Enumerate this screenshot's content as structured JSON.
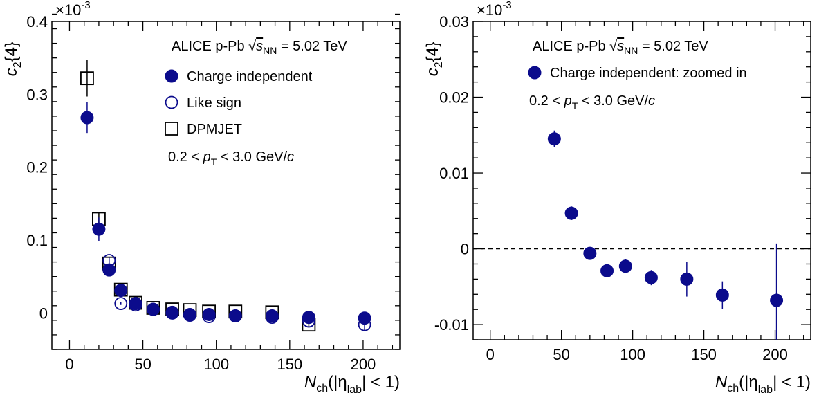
{
  "chart_data": [
    {
      "type": "scatter",
      "panel": "left",
      "xlim": [
        -12,
        225
      ],
      "ylim": [
        -0.05,
        0.4
      ],
      "yscale_label": "×10",
      "yscale_exp": "-3",
      "xlabel": {
        "main": "N",
        "sub": "ch",
        "rest": "(|η",
        "sub2": "lab",
        "tail": "| < 1)"
      },
      "ylabel": {
        "main": "c",
        "sub": "2",
        "rest": "{4}"
      },
      "x_ticks": [
        {
          "value": 0,
          "label": "0"
        },
        {
          "value": 50,
          "label": "50"
        },
        {
          "value": 100,
          "label": "100"
        },
        {
          "value": 150,
          "label": "150"
        },
        {
          "value": 200,
          "label": "200"
        }
      ],
      "y_ticks": [
        {
          "value": 0,
          "label": "0"
        },
        {
          "value": 0.1,
          "label": "0.1"
        },
        {
          "value": 0.2,
          "label": "0.2"
        },
        {
          "value": 0.3,
          "label": "0.3"
        },
        {
          "value": 0.4,
          "label": "0.4"
        }
      ],
      "annotations": {
        "experiment": "ALICE p-Pb",
        "energy_symbol": "s",
        "energy_sub": "NN",
        "energy_value": "= 5.02 TeV",
        "pt_range_pre": "0.2 <",
        "pt_symbol": "p",
        "pt_sub": "T",
        "pt_range_post": "< 3.0 GeV/",
        "pt_unit_italic": "c"
      },
      "legend": [
        {
          "label": "Charge independent",
          "marker": "filled-circle"
        },
        {
          "label": "Like sign",
          "marker": "open-circle"
        },
        {
          "label": "DPMJET",
          "marker": "open-square"
        }
      ],
      "series": [
        {
          "name": "DPMJET",
          "marker": "open-square",
          "x": [
            12,
            20,
            27,
            35,
            45,
            57,
            70,
            82,
            95,
            113,
            138,
            163
          ],
          "y": [
            0.322,
            0.129,
            0.068,
            0.032,
            0.014,
            0.007,
            0.005,
            0.004,
            0.002,
            0.002,
            0.001,
            -0.016
          ],
          "err": [
            0.025,
            0.009,
            0.006,
            0.004,
            0.002,
            0.002,
            0.001,
            0.001,
            0.001,
            0.001,
            0.001,
            0.004
          ]
        },
        {
          "name": "Like sign",
          "marker": "open-circle",
          "x": [
            27,
            35,
            45,
            57,
            70,
            82,
            95,
            113,
            138,
            163,
            201
          ],
          "y": [
            0.072,
            0.013,
            0.011,
            0.005,
            0.001,
            -0.002,
            -0.005,
            -0.004,
            -0.006,
            -0.011,
            -0.016
          ],
          "err": [
            0.004,
            0.002,
            0.001,
            0.001,
            0.001,
            0.001,
            0.001,
            0.001,
            0.001,
            0.002,
            0.008
          ]
        },
        {
          "name": "Charge independent",
          "marker": "filled-circle",
          "x": [
            12,
            20,
            27,
            35,
            45,
            57,
            70,
            82,
            95,
            113,
            138,
            163,
            201
          ],
          "y": [
            0.268,
            0.115,
            0.059,
            0.031,
            0.013,
            0.005,
            0.0,
            -0.003,
            -0.002,
            -0.004,
            -0.004,
            -0.006,
            -0.007
          ],
          "err": [
            0.021,
            0.016,
            0.004,
            0.002,
            0.001,
            0.001,
            0.001,
            0.001,
            0.001,
            0.001,
            0.002,
            0.002,
            0.008
          ]
        }
      ]
    },
    {
      "type": "scatter",
      "panel": "right",
      "xlim": [
        -12,
        225
      ],
      "ylim": [
        -0.012,
        0.03
      ],
      "yscale_label": "×10",
      "yscale_exp": "-3",
      "xlabel": {
        "main": "N",
        "sub": "ch",
        "rest": "(|η",
        "sub2": "lab",
        "tail": "| < 1)"
      },
      "ylabel": {
        "main": "c",
        "sub": "2",
        "rest": "{4}"
      },
      "x_ticks": [
        {
          "value": 0,
          "label": "0"
        },
        {
          "value": 50,
          "label": "50"
        },
        {
          "value": 100,
          "label": "100"
        },
        {
          "value": 150,
          "label": "150"
        },
        {
          "value": 200,
          "label": "200"
        }
      ],
      "y_ticks": [
        {
          "value": -0.01,
          "label": "-0.01"
        },
        {
          "value": 0,
          "label": "0"
        },
        {
          "value": 0.01,
          "label": "0.01"
        },
        {
          "value": 0.02,
          "label": "0.02"
        },
        {
          "value": 0.03,
          "label": "0.03"
        }
      ],
      "zero_line": true,
      "annotations": {
        "experiment": "ALICE p-Pb",
        "energy_symbol": "s",
        "energy_sub": "NN",
        "energy_value": "= 5.02 TeV",
        "pt_range_pre": "0.2 <",
        "pt_symbol": "p",
        "pt_sub": "T",
        "pt_range_post": "< 3.0 GeV/",
        "pt_unit_italic": "c"
      },
      "legend": [
        {
          "label": "Charge independent: zoomed in",
          "marker": "filled-circle"
        }
      ],
      "series": [
        {
          "name": "Charge independent: zoomed in",
          "marker": "filled-circle",
          "x": [
            45,
            57,
            70,
            82,
            95,
            113,
            138,
            163,
            201
          ],
          "y": [
            0.0145,
            0.0047,
            -0.0006,
            -0.0029,
            -0.0023,
            -0.0038,
            -0.004,
            -0.0061,
            -0.0068
          ],
          "err": [
            0.0011,
            0.0009,
            0.0008,
            0.0008,
            0.0009,
            0.001,
            0.0023,
            0.0018,
            0.0075
          ]
        }
      ]
    }
  ],
  "colors": {
    "marker": "#0b0b8c",
    "axis": "#000000",
    "square": "#000000"
  }
}
